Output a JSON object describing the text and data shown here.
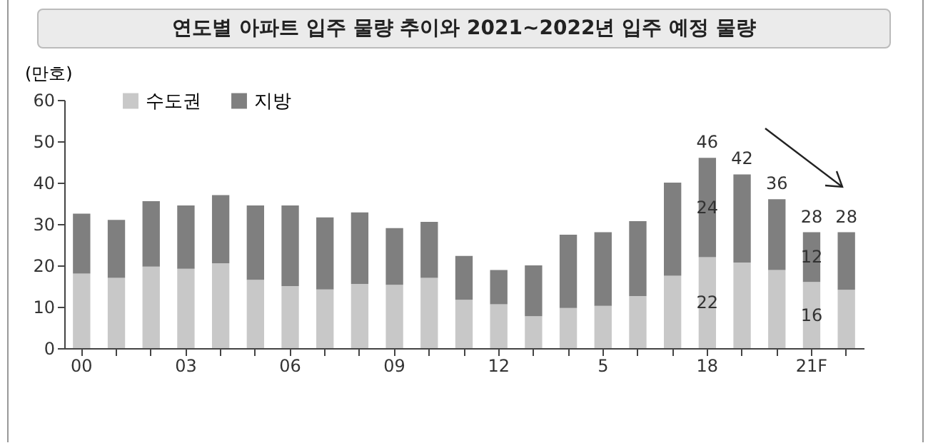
{
  "chart_data": {
    "type": "bar",
    "title": "연도별 아파트 입주 물량 추이와 2021~2022년 입주 예정 물량",
    "ylabel": "(만호)",
    "categories": [
      "00",
      null,
      null,
      "03",
      null,
      null,
      "06",
      null,
      null,
      "09",
      null,
      null,
      "12",
      null,
      null,
      "5",
      null,
      null,
      "18",
      null,
      null,
      "21F",
      null
    ],
    "stacked": true,
    "series": [
      {
        "name": "수도권",
        "color": "#c8c8c8",
        "values": [
          18,
          17,
          19.7,
          19.2,
          20.5,
          16.5,
          15,
          14.2,
          15.5,
          15.3,
          17,
          11.7,
          10.6,
          7.7,
          9.7,
          10.2,
          12.6,
          17.5,
          22,
          20.7,
          18.9,
          16,
          14.1
        ],
        "value_labels": [
          null,
          null,
          null,
          null,
          null,
          null,
          null,
          null,
          null,
          null,
          null,
          null,
          null,
          null,
          null,
          null,
          null,
          null,
          "22",
          null,
          null,
          "16",
          null
        ]
      },
      {
        "name": "지방",
        "color": "#7f7f7f",
        "values": [
          14.5,
          14,
          15.8,
          15.3,
          16.5,
          18,
          19.5,
          17.4,
          17.3,
          13.7,
          13.5,
          10.6,
          8.3,
          12.3,
          17.7,
          17.8,
          18.1,
          22.5,
          24,
          21.3,
          17.1,
          12,
          13.9
        ],
        "value_labels": [
          null,
          null,
          null,
          null,
          null,
          null,
          null,
          null,
          null,
          null,
          null,
          null,
          null,
          null,
          null,
          null,
          null,
          null,
          "24",
          null,
          null,
          "12",
          null
        ]
      }
    ],
    "totals": [
      null,
      null,
      null,
      null,
      null,
      null,
      null,
      null,
      null,
      null,
      null,
      null,
      null,
      null,
      null,
      null,
      null,
      null,
      "46",
      "42",
      "36",
      "28",
      "28"
    ],
    "ylim": [
      0,
      60
    ],
    "yticks": [
      0,
      10,
      20,
      30,
      40,
      50,
      60
    ],
    "grid": false,
    "legend": "top left"
  }
}
